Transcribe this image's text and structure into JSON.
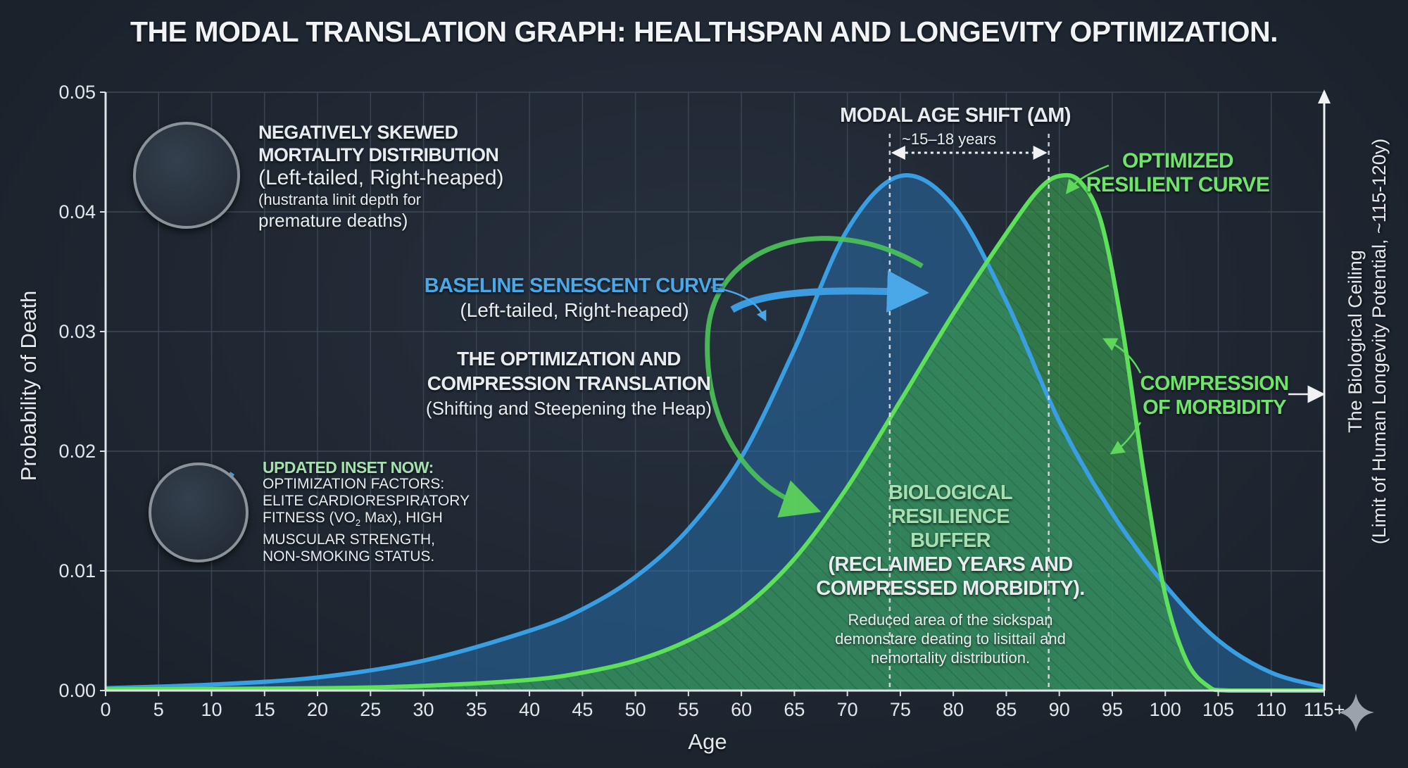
{
  "chart_data": {
    "type": "area",
    "title": "THE MODAL TRANSLATION GRAPH: HEALTHSPAN AND LONGEVITY OPTIMIZATION.",
    "xlabel": "Age",
    "ylabel": "Probability of Death",
    "xlim": [
      0,
      115
    ],
    "ylim": [
      0,
      0.05
    ],
    "grid": true,
    "x_ticks": [
      "0",
      "5",
      "10",
      "15",
      "20",
      "25",
      "30",
      "35",
      "40",
      "45",
      "50",
      "55",
      "60",
      "65",
      "70",
      "75",
      "80",
      "85",
      "90",
      "95",
      "100",
      "105",
      "110",
      "115+"
    ],
    "y_ticks": [
      "0.00",
      "0.01",
      "0.02",
      "0.03",
      "0.04",
      "0.05"
    ],
    "series": [
      {
        "name": "Baseline Senescent Curve",
        "color": "#3a9fe2",
        "x": [
          0,
          10,
          20,
          30,
          40,
          45,
          50,
          55,
          60,
          65,
          70,
          75,
          80,
          85,
          90,
          95,
          100,
          105,
          110,
          115
        ],
        "y": [
          0.0002,
          0.0005,
          0.0011,
          0.0025,
          0.005,
          0.0068,
          0.0095,
          0.0135,
          0.0195,
          0.0285,
          0.0385,
          0.043,
          0.0405,
          0.0325,
          0.0225,
          0.0148,
          0.0088,
          0.0042,
          0.0015,
          0.0003
        ]
      },
      {
        "name": "Optimized Resilient Curve",
        "color": "#5fe05a",
        "x": [
          0,
          20,
          30,
          40,
          45,
          50,
          55,
          60,
          65,
          70,
          75,
          80,
          85,
          88,
          90,
          92,
          94,
          96,
          98,
          100,
          102,
          104,
          106,
          115
        ],
        "y": [
          0.0001,
          0.0002,
          0.0004,
          0.0009,
          0.0015,
          0.0025,
          0.0042,
          0.0068,
          0.011,
          0.017,
          0.0242,
          0.0315,
          0.0382,
          0.0418,
          0.043,
          0.0425,
          0.039,
          0.03,
          0.018,
          0.008,
          0.0025,
          0.0004,
          0.0,
          0.0
        ]
      }
    ],
    "modal_ages": {
      "baseline": 74,
      "optimized": 89
    },
    "annotations": {
      "modal_shift_title": "MODAL AGE SHIFT (ΔM)",
      "modal_shift_value": "~15–18 years",
      "optimized_label_1": "OPTIMIZED",
      "optimized_label_2": "RESILIENT CURVE",
      "compression_1": "COMPRESSION",
      "compression_2": "OF MORBIDITY",
      "baseline_label": "BASELINE SENESCENT CURVE",
      "baseline_sub": "(Left-tailed, Right-heaped)",
      "translation_1": "THE OPTIMIZATION AND",
      "translation_2": "COMPRESSION TRANSLATION",
      "translation_3": "(Shifting and Steepening the Heap)",
      "buffer_1": "BIOLOGICAL",
      "buffer_2": "RESILIENCE",
      "buffer_3": "BUFFER",
      "buffer_4": "(RECLAIMED YEARS AND",
      "buffer_5": "COMPRESSED MORBIDITY).",
      "buffer_note_1": "Reduced area of the sickspan",
      "buffer_note_2": "demonstare deating to lisittail and",
      "buffer_note_3": "nemortality distribution.",
      "ceiling_1": "The Biological Ceiling",
      "ceiling_2": "(Limit of Human Longevity Potential, ~115-120y)"
    },
    "insets": {
      "distribution": {
        "line1": "NEGATIVELY SKEWED",
        "line2": "MORTALITY DISTRIBUTION",
        "line3": "(Left-tailed, Right-heaped)",
        "line4": "(hustranta linit depth for",
        "line5": "premature deaths)"
      },
      "factors": {
        "heading": "UPDATED INSET NOW:",
        "line1": "OPTIMIZATION FACTORS:",
        "line2": "ELITE CARDIORESPIRATORY",
        "line3a": "FITNESS (VO",
        "line3sub": "2",
        "line3b": " Max), HIGH",
        "line4": "MUSCULAR STRENGTH,",
        "line5": "NON-SMOKING STATUS."
      }
    }
  }
}
